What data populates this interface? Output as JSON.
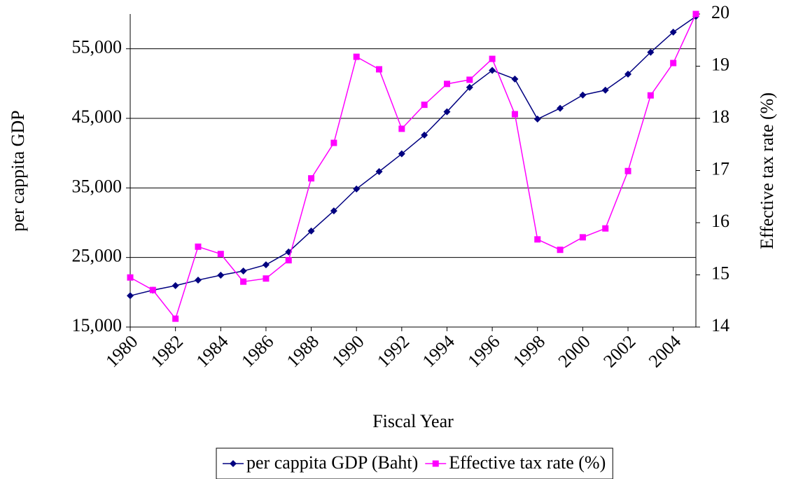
{
  "chart_data": {
    "type": "line",
    "x_label": "Fiscal Year",
    "y_label": "per cappita GDP",
    "y2_label": "Effective tax rate (%)",
    "x": [
      1980,
      1981,
      1982,
      1983,
      1984,
      1985,
      1986,
      1987,
      1988,
      1989,
      1990,
      1991,
      1992,
      1993,
      1994,
      1995,
      1996,
      1997,
      1998,
      1999,
      2000,
      2001,
      2002,
      2003,
      2004,
      2005
    ],
    "xlim": [
      1980,
      2005
    ],
    "xticks": [
      1980,
      1982,
      1984,
      1986,
      1988,
      1990,
      1992,
      1994,
      1996,
      1998,
      2000,
      2002,
      2004
    ],
    "ylim": [
      15000,
      60000
    ],
    "yticks": [
      {
        "value": 15000,
        "label": "15,000"
      },
      {
        "value": 25000,
        "label": "25,000"
      },
      {
        "value": 35000,
        "label": "35,000"
      },
      {
        "value": 45000,
        "label": "45,000"
      },
      {
        "value": 55000,
        "label": "55,000"
      }
    ],
    "y2lim": [
      14,
      20
    ],
    "y2ticks": [
      14,
      15,
      16,
      17,
      18,
      19,
      20
    ],
    "grid": true,
    "legend": "bottom",
    "series": [
      {
        "name": "per cappita GDP (Baht)",
        "color": "#000080",
        "marker": "diamond",
        "values": [
          19500,
          20300,
          20950,
          21750,
          22450,
          23050,
          23950,
          25800,
          28800,
          31700,
          34850,
          37350,
          39900,
          42600,
          45950,
          49450,
          51900,
          50650,
          44900,
          46450,
          48350,
          49050,
          51350,
          54500,
          57400,
          59650
        ]
      },
      {
        "name": "Effective tax rate (%)",
        "color": "#ff00ff",
        "marker": "square",
        "axis": "y2",
        "values": [
          14.95,
          14.71,
          14.16,
          15.54,
          15.4,
          14.87,
          14.93,
          15.28,
          16.85,
          17.53,
          19.18,
          18.94,
          17.8,
          18.26,
          18.66,
          18.74,
          19.14,
          18.08,
          15.68,
          15.48,
          15.72,
          15.89,
          16.99,
          18.44,
          19.06,
          20.0
        ]
      }
    ]
  }
}
